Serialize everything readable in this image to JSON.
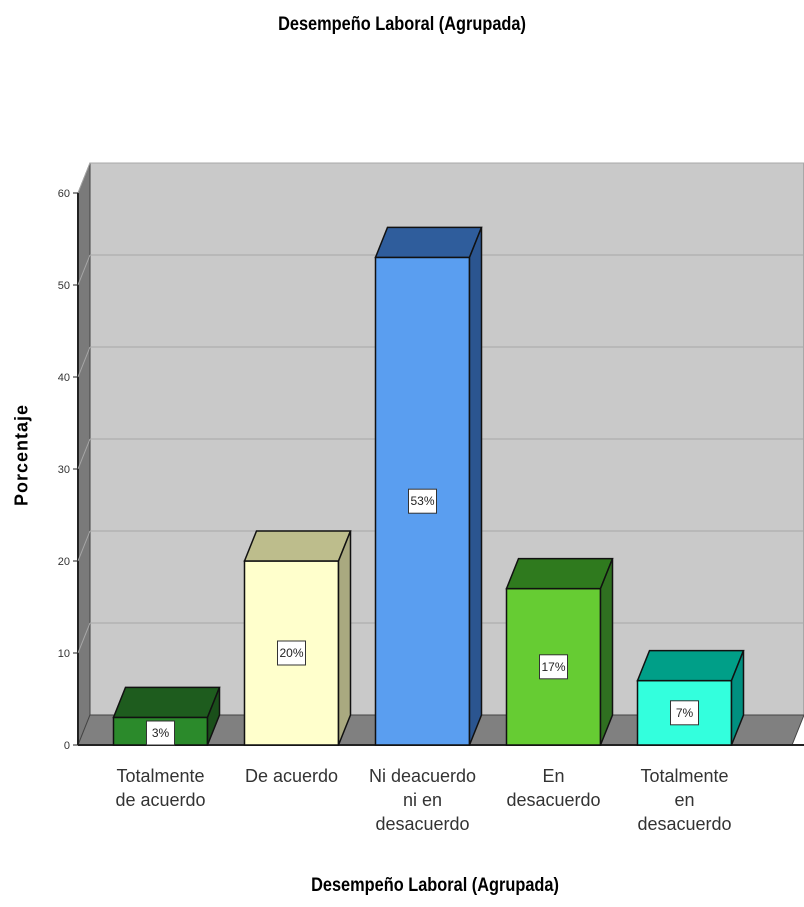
{
  "chart_data": {
    "type": "bar",
    "title": "Desempeño Laboral (Agrupada)",
    "xlabel": "Desempeño Laboral (Agrupada)",
    "ylabel": "Porcentaje",
    "ylim": [
      0,
      60
    ],
    "yticks": [
      0,
      10,
      20,
      30,
      40,
      50,
      60
    ],
    "grid": true,
    "style": "3d",
    "categories": [
      [
        "Totalmente",
        "de acuerdo"
      ],
      [
        "De acuerdo"
      ],
      [
        "Ni deacuerdo",
        "ni en",
        "desacuerdo"
      ],
      [
        "En",
        "desacuerdo"
      ],
      [
        "Totalmente",
        "en",
        "desacuerdo"
      ]
    ],
    "values": [
      3,
      20,
      53,
      17,
      7
    ],
    "data_labels": [
      "3%",
      "20%",
      "53%",
      "17%",
      "7%"
    ],
    "colors": [
      "#2b8a2b",
      "#ffffcc",
      "#5a9ef0",
      "#66cc33",
      "#33ffdd"
    ],
    "top_colors": [
      "#1e5c1e",
      "#bdbd8c",
      "#2f5d9c",
      "#2f7a1e",
      "#009f88"
    ],
    "side_colors": [
      "#1a4f1a",
      "#a9a980",
      "#2b5590",
      "#2f7020",
      "#009080"
    ]
  }
}
